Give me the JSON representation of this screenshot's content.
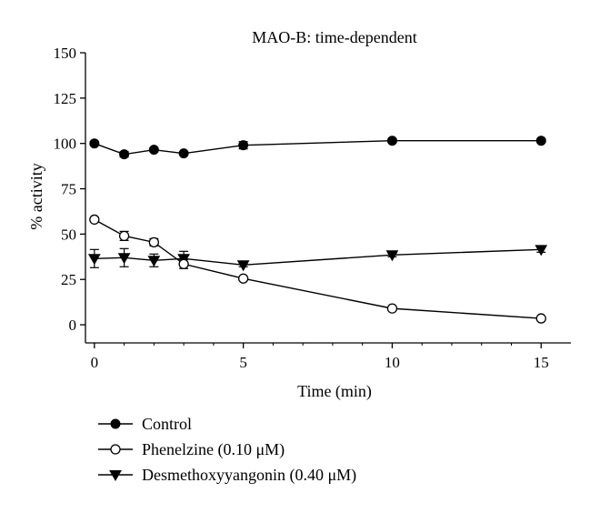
{
  "chart_data": {
    "type": "line",
    "title": "MAO-B: time-dependent",
    "xlabel": "Time (min)",
    "ylabel": "% activity",
    "xlim": [
      -0.3,
      16
    ],
    "ylim": [
      -10,
      150
    ],
    "xticks": [
      0,
      5,
      10,
      15
    ],
    "yticks": [
      0,
      25,
      50,
      75,
      100,
      125,
      150
    ],
    "xtick_labels": [
      "0",
      "5",
      "10",
      "15"
    ],
    "ytick_labels": [
      "0",
      "25",
      "50",
      "75",
      "100",
      "125",
      "150"
    ],
    "grid": false,
    "legend_position": "bottom-left",
    "series": [
      {
        "name": "Control",
        "marker": "filled-circle",
        "x": [
          0,
          1,
          2,
          3,
          5,
          10,
          15
        ],
        "y": [
          100,
          94,
          96.5,
          94.5,
          99,
          101.5,
          101.5
        ],
        "err": [
          1,
          1.5,
          1,
          0.8,
          2,
          0.8,
          0.8
        ]
      },
      {
        "name": "Phenelzine (0.10 μM)",
        "marker": "open-circle",
        "x": [
          0,
          1,
          2,
          3,
          5,
          10,
          15
        ],
        "y": [
          58,
          49,
          45.5,
          33.5,
          25.5,
          9,
          3.5
        ],
        "err": [
          1,
          2.5,
          2,
          2.5,
          1,
          0.5,
          0.5
        ]
      },
      {
        "name": "Desmethoxyyangonin (0.40 μM)",
        "marker": "filled-triangle-down",
        "x": [
          0,
          1,
          2,
          3,
          5,
          10,
          15
        ],
        "y": [
          36.5,
          37,
          35.5,
          36.5,
          33,
          38.5,
          41.5
        ],
        "err": [
          5,
          5,
          3.5,
          4,
          1,
          1,
          1.5
        ]
      }
    ]
  }
}
